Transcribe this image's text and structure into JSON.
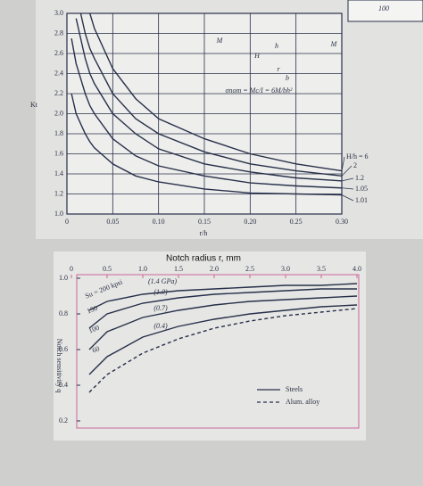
{
  "chart_data": [
    {
      "type": "line",
      "xlabel": "r/h",
      "ylabel": "Kt",
      "x": [
        0.005,
        0.01,
        0.015,
        0.02,
        0.025,
        0.03,
        0.05,
        0.075,
        0.1,
        0.15,
        0.2,
        0.25,
        0.3
      ],
      "series": [
        {
          "name": "H/h = 6",
          "color": "#27304a",
          "values": [
            null,
            null,
            null,
            null,
            3.0,
            2.85,
            2.45,
            2.15,
            1.95,
            1.75,
            1.6,
            1.5,
            1.43
          ]
        },
        {
          "name": "2",
          "color": "#27304a",
          "values": [
            null,
            null,
            3.0,
            2.8,
            2.65,
            2.55,
            2.2,
            1.95,
            1.8,
            1.62,
            1.5,
            1.43,
            1.38
          ]
        },
        {
          "name": "1.2",
          "color": "#27304a",
          "values": [
            null,
            2.95,
            2.75,
            2.55,
            2.4,
            2.3,
            2.0,
            1.8,
            1.65,
            1.5,
            1.42,
            1.36,
            1.33
          ]
        },
        {
          "name": "1.05",
          "color": "#27304a",
          "values": [
            2.75,
            2.5,
            2.35,
            2.2,
            2.08,
            2.0,
            1.75,
            1.58,
            1.48,
            1.38,
            1.31,
            1.28,
            1.26
          ]
        },
        {
          "name": "1.01",
          "color": "#27304a",
          "values": [
            2.2,
            2.0,
            1.9,
            1.8,
            1.72,
            1.66,
            1.5,
            1.38,
            1.32,
            1.25,
            1.21,
            1.2,
            1.19
          ]
        }
      ],
      "xlim": [
        0,
        0.3
      ],
      "xticks": [
        0,
        0.05,
        {
          "value": 0.1,
          "label": "0.10"
        },
        0.15,
        {
          "value": 0.2,
          "label": "0.20"
        },
        0.25,
        {
          "value": 0.3,
          "label": "0.30"
        }
      ],
      "ylim": [
        1.0,
        3.0
      ],
      "yticks": [
        {
          "value": 1.0,
          "label": "1.0"
        },
        1.2,
        1.4,
        1.6,
        1.8,
        {
          "value": 2.0,
          "label": "2.0"
        },
        2.2,
        2.4,
        2.6,
        2.8,
        {
          "value": 3.0,
          "label": "3.0"
        }
      ],
      "grid": true,
      "annotations": [
        "M",
        "M",
        "H",
        "h",
        "r",
        "b",
        "σnom = Mc/I = 6M/bh²",
        "100"
      ]
    },
    {
      "type": "line",
      "xlabel": "Notch radius r, mm",
      "ylabel": "Notch sensitivity q",
      "x": [
        0.25,
        0.5,
        1.0,
        1.5,
        2.0,
        2.5,
        3.0,
        3.5,
        4.0
      ],
      "series": [
        {
          "name": "Su = 200 kpsi",
          "color": "#27304a",
          "values": [
            0.82,
            0.87,
            0.91,
            0.93,
            0.94,
            0.95,
            0.96,
            0.96,
            0.97
          ]
        },
        {
          "name": "150",
          "color": "#27304a",
          "values": [
            0.72,
            0.8,
            0.86,
            0.89,
            0.91,
            0.92,
            0.93,
            0.94,
            0.94
          ]
        },
        {
          "name": "100",
          "color": "#27304a",
          "values": [
            0.6,
            0.7,
            0.78,
            0.82,
            0.85,
            0.87,
            0.88,
            0.89,
            0.9
          ]
        },
        {
          "name": "60",
          "color": "#27304a",
          "values": [
            0.46,
            0.56,
            0.67,
            0.73,
            0.77,
            0.8,
            0.82,
            0.84,
            0.85
          ]
        },
        {
          "name": "Alum. alloy",
          "color": "#27304a",
          "dashed": true,
          "values": [
            0.36,
            0.46,
            0.58,
            0.66,
            0.72,
            0.76,
            0.79,
            0.81,
            0.83
          ]
        }
      ],
      "xlim": [
        0,
        4.0
      ],
      "xticks": [
        0,
        0.5,
        {
          "value": 1.0,
          "label": "1.0"
        },
        1.5,
        {
          "value": 2.0,
          "label": "2.0"
        },
        2.5,
        {
          "value": 3.0,
          "label": "3.0"
        },
        3.5,
        {
          "value": 4.0,
          "label": "4.0"
        }
      ],
      "ylim": [
        0.2,
        1.0
      ],
      "yticks": [
        0.2,
        0.4,
        0.6,
        0.8,
        {
          "value": 1.0,
          "label": "1.0"
        }
      ],
      "grid": false,
      "annotations": [
        "(1.4 GPa)",
        "(1.0)",
        "(0.7)",
        "(0.4)"
      ],
      "legend": [
        "Steels",
        "Alum. alloy"
      ]
    }
  ]
}
